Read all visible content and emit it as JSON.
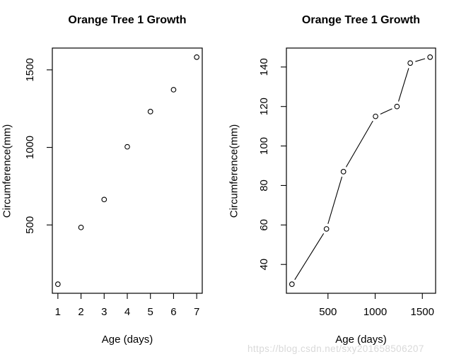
{
  "figure": {
    "background": "#ffffff",
    "foreground": "#000000"
  },
  "watermark": {
    "text": "https://blog.csdn.net/sxy201658506207",
    "color": "#d9d9d9"
  },
  "chart_data": [
    {
      "type": "scatter",
      "title": "Orange Tree 1 Growth",
      "xlabel": "Age (days)",
      "ylabel": "Circumference(mm)",
      "x": [
        1,
        2,
        3,
        4,
        5,
        6,
        7
      ],
      "y": [
        118,
        484,
        664,
        1004,
        1231,
        1372,
        1582
      ],
      "xticks": [
        1,
        2,
        3,
        4,
        5,
        6,
        7
      ],
      "yticks": [
        500,
        1000,
        1500
      ],
      "xlim": [
        0.76,
        7.24
      ],
      "ylim": [
        59.4,
        1640.6
      ],
      "marker": "open-circle",
      "show_line": false,
      "grid": false,
      "color": "#000000"
    },
    {
      "type": "line",
      "title": "Orange Tree 1 Growth",
      "xlabel": "Age (days)",
      "ylabel": "Circumference(mm)",
      "x": [
        118,
        484,
        664,
        1004,
        1231,
        1372,
        1582
      ],
      "y": [
        30,
        58,
        87,
        115,
        120,
        142,
        145
      ],
      "xticks": [
        500,
        1000,
        1500
      ],
      "yticks": [
        40,
        60,
        80,
        100,
        120,
        140
      ],
      "xlim": [
        59.4,
        1640.6
      ],
      "ylim": [
        25.4,
        149.6
      ],
      "marker": "open-circle",
      "show_line": true,
      "line_style": "segments-with-gaps-at-points",
      "grid": false,
      "color": "#000000"
    }
  ]
}
